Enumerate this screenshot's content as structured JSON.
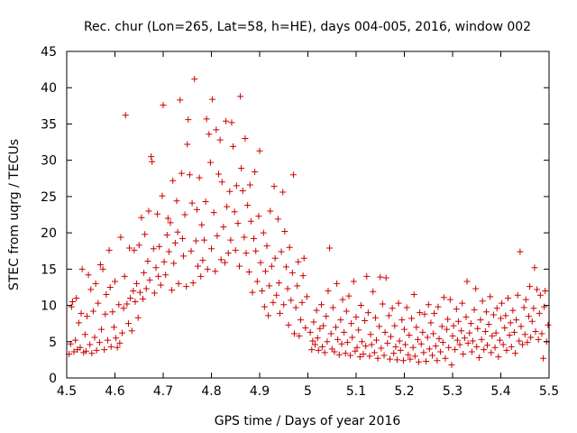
{
  "chart_data": {
    "type": "scatter",
    "title": "Rec. chur (Lon=265, Lat=58, h=HE), days 004-005, 2016, window 002",
    "xlabel": "GPS time / Days of year 2016",
    "ylabel": "STEC from uqrg / TECUs",
    "xlim": [
      4.5,
      5.5
    ],
    "ylim": [
      0,
      45
    ],
    "xticks": [
      4.5,
      4.6,
      4.7,
      4.8,
      4.9,
      5.0,
      5.1,
      5.2,
      5.3,
      5.4,
      5.5
    ],
    "xtick_labels": [
      "4.5",
      "4.6",
      "4.7",
      "4.8",
      "4.9",
      "5",
      "5.1",
      "5.2",
      "5.3",
      "5.4",
      "5.5"
    ],
    "yticks": [
      0,
      5,
      10,
      15,
      20,
      25,
      30,
      35,
      40,
      45
    ],
    "ytick_labels": [
      "0",
      "5",
      "10",
      "15",
      "20",
      "25",
      "30",
      "35",
      "40",
      "45"
    ],
    "grid": false,
    "marker": "plus",
    "color": "#cc0000",
    "points": [
      [
        4.505,
        3.3
      ],
      [
        4.508,
        4.7
      ],
      [
        4.51,
        9.8
      ],
      [
        4.512,
        10.5
      ],
      [
        4.515,
        3.6
      ],
      [
        4.518,
        5.2
      ],
      [
        4.52,
        11.0
      ],
      [
        4.522,
        3.9
      ],
      [
        4.525,
        7.6
      ],
      [
        4.528,
        4.2
      ],
      [
        4.53,
        8.9
      ],
      [
        4.532,
        15.0
      ],
      [
        4.535,
        3.5
      ],
      [
        4.538,
        6.0
      ],
      [
        4.54,
        3.7
      ],
      [
        4.542,
        8.5
      ],
      [
        4.545,
        14.2
      ],
      [
        4.548,
        4.6
      ],
      [
        4.55,
        12.2
      ],
      [
        4.552,
        3.4
      ],
      [
        4.555,
        9.2
      ],
      [
        4.558,
        5.6
      ],
      [
        4.56,
        13.0
      ],
      [
        4.562,
        3.8
      ],
      [
        4.565,
        10.3
      ],
      [
        4.568,
        4.9
      ],
      [
        4.57,
        15.6
      ],
      [
        4.572,
        6.7
      ],
      [
        4.575,
        15.0
      ],
      [
        4.578,
        3.9
      ],
      [
        4.58,
        8.8
      ],
      [
        4.582,
        11.5
      ],
      [
        4.585,
        5.2
      ],
      [
        4.588,
        17.6
      ],
      [
        4.59,
        12.5
      ],
      [
        4.592,
        4.3
      ],
      [
        4.595,
        9.1
      ],
      [
        4.598,
        7.0
      ],
      [
        4.6,
        13.3
      ],
      [
        4.602,
        5.5
      ],
      [
        4.605,
        4.2
      ],
      [
        4.608,
        10.1
      ],
      [
        4.61,
        4.8
      ],
      [
        4.612,
        19.4
      ],
      [
        4.615,
        6.2
      ],
      [
        4.618,
        9.6
      ],
      [
        4.62,
        14.0
      ],
      [
        4.622,
        36.2
      ],
      [
        4.625,
        10.2
      ],
      [
        4.628,
        7.5
      ],
      [
        4.63,
        17.9
      ],
      [
        4.632,
        11.0
      ],
      [
        4.635,
        6.5
      ],
      [
        4.638,
        12.0
      ],
      [
        4.64,
        17.6
      ],
      [
        4.642,
        10.5
      ],
      [
        4.645,
        13.0
      ],
      [
        4.648,
        8.3
      ],
      [
        4.65,
        18.3
      ],
      [
        4.652,
        11.8
      ],
      [
        4.655,
        22.1
      ],
      [
        4.658,
        10.9
      ],
      [
        4.66,
        14.5
      ],
      [
        4.662,
        19.8
      ],
      [
        4.665,
        12.3
      ],
      [
        4.668,
        16.1
      ],
      [
        4.67,
        23.0
      ],
      [
        4.672,
        13.5
      ],
      [
        4.675,
        30.5
      ],
      [
        4.677,
        29.8
      ],
      [
        4.68,
        17.8
      ],
      [
        4.682,
        11.7
      ],
      [
        4.685,
        15.2
      ],
      [
        4.688,
        22.6
      ],
      [
        4.69,
        14.0
      ],
      [
        4.692,
        18.1
      ],
      [
        4.695,
        12.8
      ],
      [
        4.698,
        25.1
      ],
      [
        4.7,
        37.6
      ],
      [
        4.702,
        16.0
      ],
      [
        4.705,
        14.2
      ],
      [
        4.708,
        19.7
      ],
      [
        4.71,
        22.0
      ],
      [
        4.712,
        17.4
      ],
      [
        4.715,
        21.4
      ],
      [
        4.718,
        12.1
      ],
      [
        4.72,
        27.2
      ],
      [
        4.722,
        15.8
      ],
      [
        4.725,
        18.6
      ],
      [
        4.728,
        24.4
      ],
      [
        4.73,
        20.1
      ],
      [
        4.732,
        13.0
      ],
      [
        4.735,
        38.3
      ],
      [
        4.738,
        28.2
      ],
      [
        4.74,
        19.2
      ],
      [
        4.742,
        16.8
      ],
      [
        4.745,
        22.5
      ],
      [
        4.748,
        12.6
      ],
      [
        4.75,
        32.2
      ],
      [
        4.752,
        35.6
      ],
      [
        4.755,
        28.0
      ],
      [
        4.758,
        17.5
      ],
      [
        4.76,
        24.1
      ],
      [
        4.762,
        13.1
      ],
      [
        4.765,
        41.2
      ],
      [
        4.768,
        18.9
      ],
      [
        4.77,
        23.2
      ],
      [
        4.772,
        15.4
      ],
      [
        4.775,
        27.6
      ],
      [
        4.778,
        14.0
      ],
      [
        4.78,
        21.1
      ],
      [
        4.782,
        16.2
      ],
      [
        4.785,
        19.0
      ],
      [
        4.788,
        24.3
      ],
      [
        4.79,
        35.7
      ],
      [
        4.792,
        15.0
      ],
      [
        4.795,
        33.6
      ],
      [
        4.798,
        29.7
      ],
      [
        4.8,
        17.8
      ],
      [
        4.802,
        38.4
      ],
      [
        4.805,
        22.8
      ],
      [
        4.808,
        14.7
      ],
      [
        4.81,
        34.2
      ],
      [
        4.812,
        19.6
      ],
      [
        4.815,
        28.1
      ],
      [
        4.818,
        32.8
      ],
      [
        4.82,
        16.3
      ],
      [
        4.822,
        27.0
      ],
      [
        4.825,
        20.8
      ],
      [
        4.828,
        15.9
      ],
      [
        4.83,
        35.4
      ],
      [
        4.832,
        23.6
      ],
      [
        4.835,
        17.2
      ],
      [
        4.838,
        25.7
      ],
      [
        4.84,
        19.0
      ],
      [
        4.842,
        35.2
      ],
      [
        4.845,
        31.9
      ],
      [
        4.848,
        22.9
      ],
      [
        4.85,
        17.6
      ],
      [
        4.852,
        26.5
      ],
      [
        4.855,
        21.3
      ],
      [
        4.858,
        15.4
      ],
      [
        4.86,
        38.8
      ],
      [
        4.862,
        28.9
      ],
      [
        4.865,
        25.8
      ],
      [
        4.868,
        19.4
      ],
      [
        4.87,
        33.0
      ],
      [
        4.872,
        17.2
      ],
      [
        4.875,
        23.8
      ],
      [
        4.878,
        14.6
      ],
      [
        4.88,
        26.6
      ],
      [
        4.882,
        21.6
      ],
      [
        4.885,
        11.8
      ],
      [
        4.888,
        19.2
      ],
      [
        4.89,
        28.4
      ],
      [
        4.892,
        17.5
      ],
      [
        4.895,
        13.3
      ],
      [
        4.898,
        22.3
      ],
      [
        4.9,
        31.3
      ],
      [
        4.902,
        15.9
      ],
      [
        4.905,
        12.0
      ],
      [
        4.908,
        20.0
      ],
      [
        4.91,
        9.8
      ],
      [
        4.912,
        14.7
      ],
      [
        4.915,
        18.2
      ],
      [
        4.918,
        8.6
      ],
      [
        4.92,
        12.7
      ],
      [
        4.922,
        23.0
      ],
      [
        4.925,
        15.4
      ],
      [
        4.928,
        10.4
      ],
      [
        4.93,
        26.4
      ],
      [
        4.932,
        16.5
      ],
      [
        4.935,
        11.4
      ],
      [
        4.938,
        21.9
      ],
      [
        4.94,
        13.1
      ],
      [
        4.942,
        8.9
      ],
      [
        4.945,
        17.4
      ],
      [
        4.948,
        25.6
      ],
      [
        4.95,
        10.1
      ],
      [
        4.952,
        20.2
      ],
      [
        4.955,
        15.3
      ],
      [
        4.958,
        12.3
      ],
      [
        4.96,
        7.3
      ],
      [
        4.962,
        18.0
      ],
      [
        4.965,
        10.7
      ],
      [
        4.968,
        14.5
      ],
      [
        4.97,
        28.0
      ],
      [
        4.972,
        6.1
      ],
      [
        4.975,
        9.7
      ],
      [
        4.978,
        12.7
      ],
      [
        4.98,
        16.0
      ],
      [
        4.982,
        5.8
      ],
      [
        4.985,
        8.0
      ],
      [
        4.988,
        10.4
      ],
      [
        4.99,
        14.1
      ],
      [
        4.992,
        16.5
      ],
      [
        4.995,
        6.9
      ],
      [
        4.998,
        11.2
      ],
      [
        5.005,
        6.3
      ],
      [
        5.008,
        3.9
      ],
      [
        5.01,
        5.1
      ],
      [
        5.012,
        7.7
      ],
      [
        5.015,
        4.6
      ],
      [
        5.018,
        9.3
      ],
      [
        5.02,
        5.5
      ],
      [
        5.022,
        3.8
      ],
      [
        5.025,
        6.8
      ],
      [
        5.028,
        10.1
      ],
      [
        5.03,
        4.3
      ],
      [
        5.032,
        7.2
      ],
      [
        5.035,
        3.5
      ],
      [
        5.038,
        8.5
      ],
      [
        5.04,
        5.0
      ],
      [
        5.042,
        12.0
      ],
      [
        5.045,
        17.9
      ],
      [
        5.048,
        6.1
      ],
      [
        5.05,
        4.0
      ],
      [
        5.052,
        9.7
      ],
      [
        5.055,
        3.6
      ],
      [
        5.058,
        7.0
      ],
      [
        5.06,
        13.0
      ],
      [
        5.062,
        5.3
      ],
      [
        5.065,
        3.2
      ],
      [
        5.068,
        8.0
      ],
      [
        5.07,
        4.7
      ],
      [
        5.072,
        10.8
      ],
      [
        5.075,
        6.3
      ],
      [
        5.078,
        3.4
      ],
      [
        5.08,
        9.2
      ],
      [
        5.082,
        4.9
      ],
      [
        5.085,
        11.3
      ],
      [
        5.088,
        3.1
      ],
      [
        5.09,
        7.5
      ],
      [
        5.092,
        5.6
      ],
      [
        5.095,
        13.3
      ],
      [
        5.098,
        3.7
      ],
      [
        5.1,
        8.4
      ],
      [
        5.102,
        4.2
      ],
      [
        5.105,
        6.6
      ],
      [
        5.108,
        2.9
      ],
      [
        5.11,
        10.0
      ],
      [
        5.112,
        5.0
      ],
      [
        5.115,
        3.3
      ],
      [
        5.118,
        7.9
      ],
      [
        5.12,
        4.4
      ],
      [
        5.122,
        14.0
      ],
      [
        5.125,
        9.0
      ],
      [
        5.128,
        3.0
      ],
      [
        5.13,
        6.0
      ],
      [
        5.132,
        4.6
      ],
      [
        5.135,
        11.9
      ],
      [
        5.138,
        3.5
      ],
      [
        5.14,
        8.3
      ],
      [
        5.142,
        5.2
      ],
      [
        5.145,
        2.7
      ],
      [
        5.148,
        7.1
      ],
      [
        5.15,
        13.9
      ],
      [
        5.152,
        4.1
      ],
      [
        5.155,
        10.2
      ],
      [
        5.158,
        3.1
      ],
      [
        5.16,
        6.3
      ],
      [
        5.162,
        13.8
      ],
      [
        5.165,
        4.8
      ],
      [
        5.168,
        8.6
      ],
      [
        5.17,
        2.6
      ],
      [
        5.172,
        5.7
      ],
      [
        5.175,
        9.6
      ],
      [
        5.178,
        3.4
      ],
      [
        5.18,
        7.2
      ],
      [
        5.182,
        4.3
      ],
      [
        5.185,
        2.5
      ],
      [
        5.188,
        10.3
      ],
      [
        5.19,
        5.1
      ],
      [
        5.192,
        3.8
      ],
      [
        5.195,
        8.0
      ],
      [
        5.198,
        2.4
      ],
      [
        5.2,
        6.7
      ],
      [
        5.202,
        4.6
      ],
      [
        5.205,
        9.7
      ],
      [
        5.208,
        3.2
      ],
      [
        5.21,
        5.9
      ],
      [
        5.212,
        2.6
      ],
      [
        5.215,
        8.2
      ],
      [
        5.218,
        4.2
      ],
      [
        5.22,
        11.5
      ],
      [
        5.222,
        3.0
      ],
      [
        5.225,
        7.0
      ],
      [
        5.228,
        5.3
      ],
      [
        5.23,
        2.2
      ],
      [
        5.232,
        9.0
      ],
      [
        5.235,
        4.7
      ],
      [
        5.238,
        6.3
      ],
      [
        5.24,
        3.5
      ],
      [
        5.242,
        8.8
      ],
      [
        5.245,
        2.3
      ],
      [
        5.248,
        5.6
      ],
      [
        5.25,
        10.1
      ],
      [
        5.252,
        4.0
      ],
      [
        5.255,
        7.6
      ],
      [
        5.258,
        3.1
      ],
      [
        5.26,
        6.1
      ],
      [
        5.262,
        8.9
      ],
      [
        5.265,
        4.4
      ],
      [
        5.268,
        2.4
      ],
      [
        5.27,
        9.8
      ],
      [
        5.272,
        5.4
      ],
      [
        5.275,
        3.6
      ],
      [
        5.278,
        7.1
      ],
      [
        5.28,
        4.9
      ],
      [
        5.282,
        11.1
      ],
      [
        5.285,
        2.7
      ],
      [
        5.288,
        6.7
      ],
      [
        5.29,
        8.1
      ],
      [
        5.292,
        4.2
      ],
      [
        5.295,
        10.8
      ],
      [
        5.298,
        1.8
      ],
      [
        5.3,
        5.8
      ],
      [
        5.302,
        7.2
      ],
      [
        5.305,
        3.9
      ],
      [
        5.308,
        9.5
      ],
      [
        5.31,
        5.2
      ],
      [
        5.312,
        7.8
      ],
      [
        5.315,
        4.6
      ],
      [
        5.318,
        6.5
      ],
      [
        5.32,
        10.3
      ],
      [
        5.322,
        3.3
      ],
      [
        5.325,
        5.5
      ],
      [
        5.328,
        8.4
      ],
      [
        5.33,
        13.3
      ],
      [
        5.332,
        4.8
      ],
      [
        5.335,
        6.2
      ],
      [
        5.338,
        7.5
      ],
      [
        5.34,
        3.6
      ],
      [
        5.342,
        5.1
      ],
      [
        5.345,
        9.4
      ],
      [
        5.348,
        12.3
      ],
      [
        5.35,
        4.3
      ],
      [
        5.352,
        6.8
      ],
      [
        5.355,
        2.8
      ],
      [
        5.358,
        8.0
      ],
      [
        5.36,
        5.3
      ],
      [
        5.362,
        10.6
      ],
      [
        5.365,
        3.9
      ],
      [
        5.368,
        6.4
      ],
      [
        5.37,
        9.1
      ],
      [
        5.372,
        4.5
      ],
      [
        5.375,
        7.4
      ],
      [
        5.378,
        11.2
      ],
      [
        5.38,
        3.5
      ],
      [
        5.382,
        5.8
      ],
      [
        5.385,
        8.7
      ],
      [
        5.388,
        4.2
      ],
      [
        5.39,
        6.2
      ],
      [
        5.392,
        9.6
      ],
      [
        5.395,
        2.9
      ],
      [
        5.398,
        5.2
      ],
      [
        5.4,
        8.2
      ],
      [
        5.402,
        10.3
      ],
      [
        5.405,
        4.6
      ],
      [
        5.408,
        6.9
      ],
      [
        5.41,
        8.6
      ],
      [
        5.412,
        3.8
      ],
      [
        5.415,
        11.0
      ],
      [
        5.418,
        5.9
      ],
      [
        5.42,
        7.6
      ],
      [
        5.422,
        4.3
      ],
      [
        5.425,
        9.3
      ],
      [
        5.428,
        6.3
      ],
      [
        5.43,
        3.4
      ],
      [
        5.432,
        8.0
      ],
      [
        5.435,
        11.4
      ],
      [
        5.438,
        5.1
      ],
      [
        5.44,
        17.4
      ],
      [
        5.442,
        7.1
      ],
      [
        5.445,
        4.6
      ],
      [
        5.448,
        9.7
      ],
      [
        5.45,
        6.0
      ],
      [
        5.452,
        10.8
      ],
      [
        5.455,
        4.9
      ],
      [
        5.458,
        8.5
      ],
      [
        5.46,
        12.6
      ],
      [
        5.462,
        5.6
      ],
      [
        5.465,
        7.8
      ],
      [
        5.468,
        9.6
      ],
      [
        5.47,
        15.2
      ],
      [
        5.472,
        6.4
      ],
      [
        5.475,
        12.2
      ],
      [
        5.478,
        5.3
      ],
      [
        5.48,
        8.9
      ],
      [
        5.482,
        11.4
      ],
      [
        5.485,
        6.1
      ],
      [
        5.488,
        2.7
      ],
      [
        5.49,
        9.8
      ],
      [
        5.492,
        12.0
      ],
      [
        5.495,
        5.0
      ],
      [
        5.498,
        7.3
      ]
    ]
  }
}
